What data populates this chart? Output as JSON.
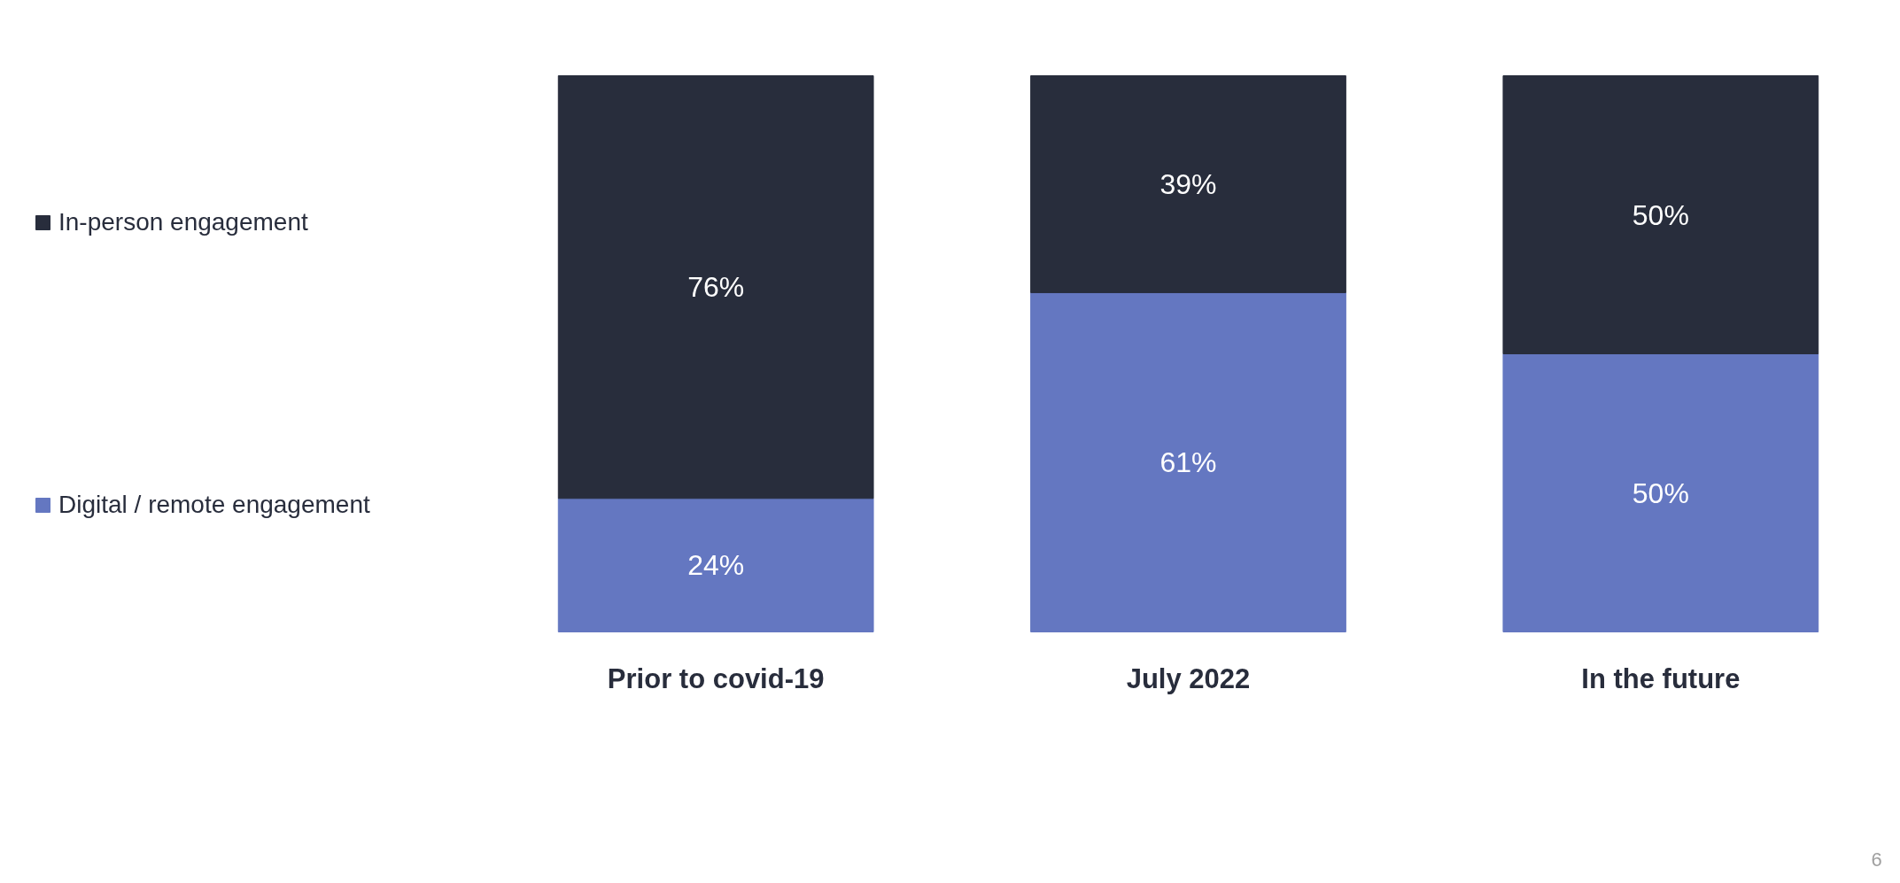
{
  "chart_data": {
    "type": "bar",
    "stacked": true,
    "categories": [
      "Prior to covid-19",
      "July 2022",
      "In the future"
    ],
    "series": [
      {
        "name": "Digital / remote engagement",
        "color": "#6477c1",
        "values": [
          24,
          61,
          50
        ],
        "value_labels": [
          "24%",
          "61%",
          "50%"
        ]
      },
      {
        "name": "In-person engagement",
        "color": "#282d3c",
        "values": [
          76,
          39,
          50
        ],
        "value_labels": [
          "76%",
          "39%",
          "50%"
        ]
      }
    ],
    "ylim": [
      0,
      100
    ],
    "tick_labels": "x",
    "legend": "left",
    "grid": false,
    "annotations": [
      "6"
    ]
  }
}
